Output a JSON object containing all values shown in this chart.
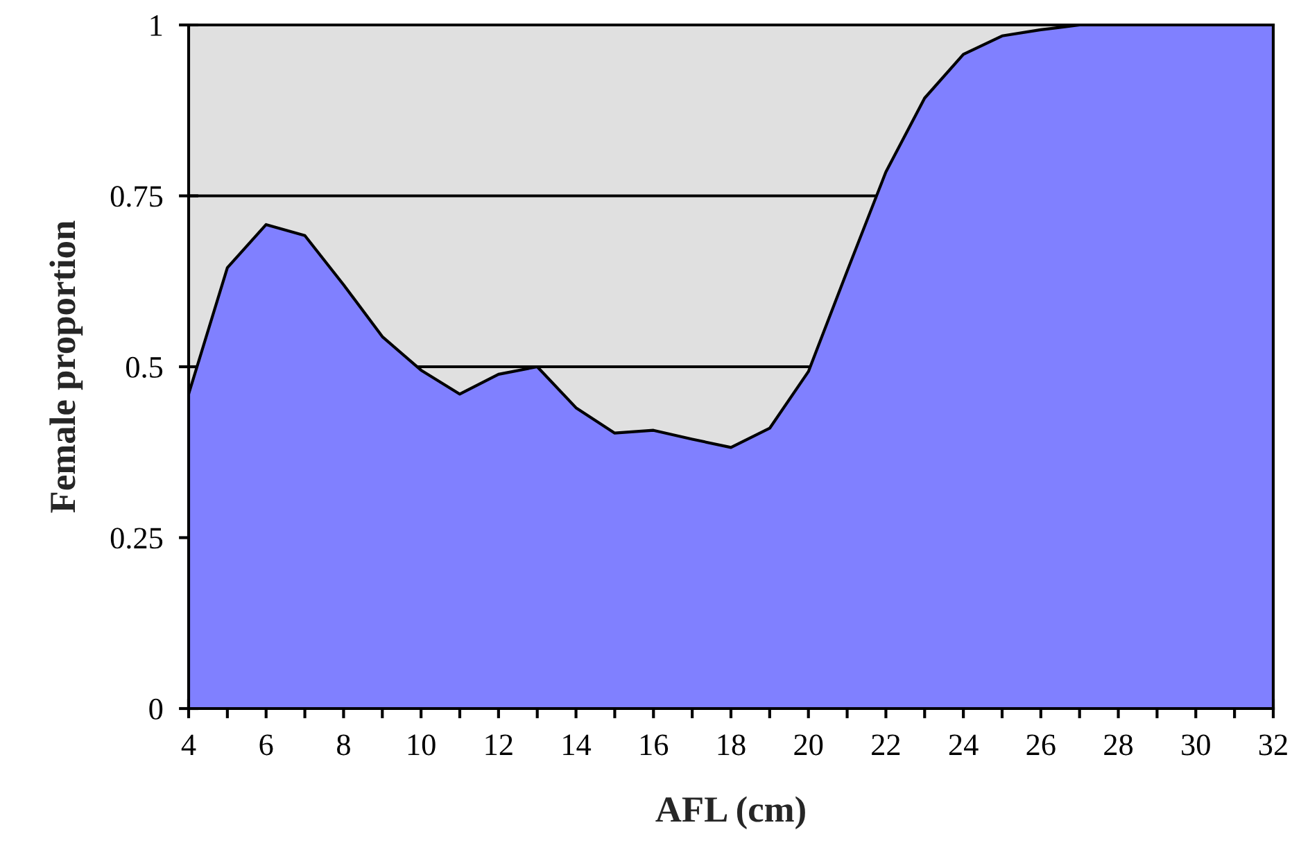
{
  "chart_data": {
    "type": "area",
    "xlabel": "AFL (cm)",
    "ylabel": "Female proportion",
    "x": [
      4,
      5,
      6,
      7,
      8,
      9,
      10,
      11,
      12,
      13,
      14,
      15,
      16,
      17,
      18,
      19,
      20,
      21,
      22,
      23,
      24,
      25,
      26,
      27,
      28,
      29,
      30,
      31,
      32
    ],
    "series": [
      {
        "color": "#8080ff",
        "values": [
          0.46,
          0.645,
          0.708,
          0.692,
          0.62,
          0.544,
          0.495,
          0.46,
          0.489,
          0.5,
          0.44,
          0.403,
          0.407,
          0.394,
          0.382,
          0.41,
          0.493,
          0.64,
          0.785,
          0.893,
          0.957,
          0.984,
          0.993,
          1,
          1,
          1,
          1,
          1,
          1
        ]
      }
    ],
    "xlim": [
      4,
      32
    ],
    "xticks": [
      4,
      {
        "value": 5,
        "label": null
      },
      6,
      {
        "value": 7,
        "label": null
      },
      8,
      {
        "value": 9,
        "label": null
      },
      10,
      {
        "value": 11,
        "label": null
      },
      12,
      {
        "value": 13,
        "label": null
      },
      14,
      {
        "value": 15,
        "label": null
      },
      16,
      {
        "value": 17,
        "label": null
      },
      18,
      {
        "value": 19,
        "label": null
      },
      20,
      {
        "value": 21,
        "label": null
      },
      22,
      {
        "value": 23,
        "label": null
      },
      24,
      {
        "value": 25,
        "label": null
      },
      26,
      {
        "value": 27,
        "label": null
      },
      28,
      {
        "value": 29,
        "label": null
      },
      30,
      {
        "value": 31,
        "label": null
      },
      32
    ],
    "ylim": [
      0,
      1
    ],
    "yticks": [
      0,
      0.25,
      0.5,
      0.75,
      1
    ],
    "grid": "y"
  }
}
